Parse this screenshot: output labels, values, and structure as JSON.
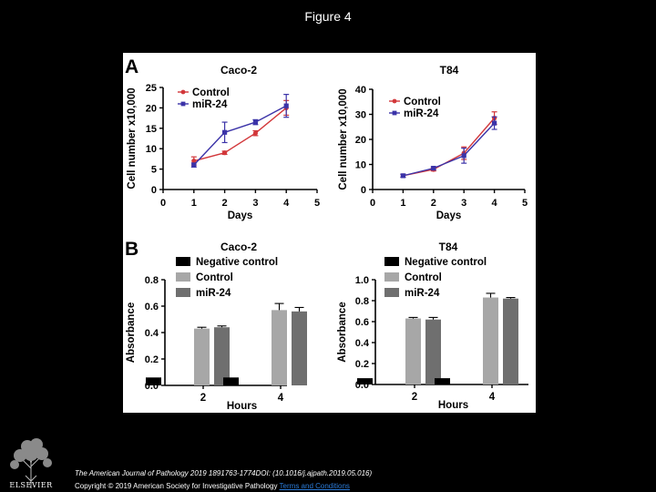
{
  "page": {
    "title": "Figure 4",
    "citation": "The American Journal of Pathology 2019 1891763-1774DOI: (10.1016/j.ajpath.2019.05.016)",
    "copyright_prefix": "Copyright © 2019 American Society for Investigative Pathology ",
    "copyright_link": "Terms and Conditions",
    "publisher": "ELSEVIER"
  },
  "colors": {
    "control": "#d2373a",
    "mir24": "#3b33a8",
    "negative": "#000000",
    "control_bar": "#a7a7a7",
    "mir24_bar": "#6f6f6f"
  },
  "chart_data": [
    {
      "panel": "A",
      "type": "line",
      "title": "Caco-2",
      "xlabel": "Days",
      "ylabel": "Cell number x10,000",
      "x": [
        1,
        2,
        3,
        4
      ],
      "xlim": [
        0,
        5
      ],
      "ylim": [
        0,
        25
      ],
      "xticks": [
        "0",
        "1",
        "2",
        "3",
        "4",
        "5"
      ],
      "yticks": [
        "0",
        "5",
        "10",
        "15",
        "20",
        "25"
      ],
      "legend_position": "top-left",
      "series": [
        {
          "name": "Control",
          "values": [
            7,
            9,
            13.8,
            20
          ],
          "errors": [
            1,
            0.4,
            0.6,
            1.8
          ]
        },
        {
          "name": "miR-24",
          "values": [
            6,
            14,
            16.5,
            20.5
          ],
          "errors": [
            0.5,
            2.5,
            0.6,
            2.8
          ]
        }
      ]
    },
    {
      "panel": "",
      "type": "line",
      "title": "T84",
      "xlabel": "Days",
      "ylabel": "Cell number x10,000",
      "x": [
        1,
        2,
        3,
        4
      ],
      "xlim": [
        0,
        5
      ],
      "ylim": [
        0,
        40
      ],
      "xticks": [
        "0",
        "1",
        "2",
        "3",
        "4",
        "5"
      ],
      "yticks": [
        "0",
        "10",
        "20",
        "30",
        "40"
      ],
      "legend_position": "top-left",
      "series": [
        {
          "name": "Control",
          "values": [
            5.5,
            8,
            14.5,
            28.5
          ],
          "errors": [
            0.6,
            0.6,
            2.5,
            2.5
          ]
        },
        {
          "name": "miR-24",
          "values": [
            5.5,
            8.5,
            13.5,
            26.5
          ],
          "errors": [
            0.6,
            0.6,
            3,
            2.5
          ]
        }
      ]
    },
    {
      "panel": "B",
      "type": "bar",
      "title": "Caco-2",
      "xlabel": "Hours",
      "ylabel": "Absorbance",
      "categories": [
        "2",
        "4"
      ],
      "ylim": [
        0,
        0.8
      ],
      "yticks": [
        "0.0",
        "0.2",
        "0.4",
        "0.6",
        "0.8"
      ],
      "legend_position": "top-left",
      "series": [
        {
          "name": "Negative control",
          "values": [
            0.06,
            0.06
          ],
          "errors": [
            0,
            0
          ]
        },
        {
          "name": "Control",
          "values": [
            0.43,
            0.57
          ],
          "errors": [
            0.01,
            0.05
          ]
        },
        {
          "name": "miR-24",
          "values": [
            0.44,
            0.56
          ],
          "errors": [
            0.01,
            0.03
          ]
        }
      ]
    },
    {
      "panel": "",
      "type": "bar",
      "title": "T84",
      "xlabel": "Hours",
      "ylabel": "Absorbance",
      "categories": [
        "2",
        "4"
      ],
      "ylim": [
        0,
        1.0
      ],
      "yticks": [
        "0.0",
        "0.2",
        "0.4",
        "0.6",
        "0.8",
        "1.0"
      ],
      "legend_position": "top-left",
      "series": [
        {
          "name": "Negative control",
          "values": [
            0.06,
            0.06
          ],
          "errors": [
            0,
            0
          ]
        },
        {
          "name": "Control",
          "values": [
            0.63,
            0.83
          ],
          "errors": [
            0.01,
            0.04
          ]
        },
        {
          "name": "miR-24",
          "values": [
            0.62,
            0.82
          ],
          "errors": [
            0.02,
            0.01
          ]
        }
      ]
    }
  ]
}
